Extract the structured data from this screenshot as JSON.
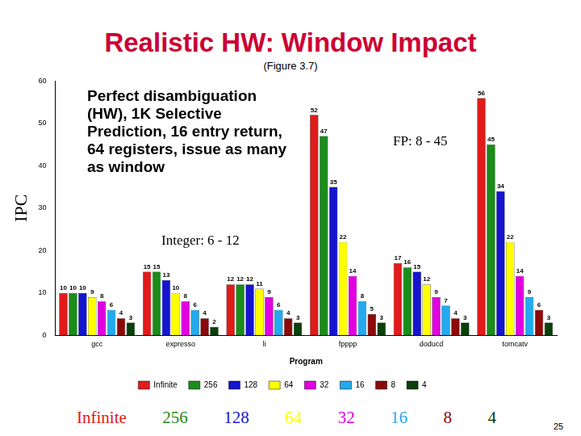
{
  "chart_data": {
    "type": "bar",
    "title": "Realistic HW: Window Impact",
    "subtitle": "(Figure 3.7)",
    "x_label": "Program",
    "y_label": "IPC",
    "annotations": [
      "Perfect disambiguation (HW), 1K Selective Prediction, 16 entry return, 64 registers, issue as many as window",
      "FP: 8 - 45",
      "Integer: 6 - 12",
      "25"
    ],
    "categories": [
      "gcc",
      "expresso",
      "li",
      "fpppp",
      "doducd",
      "tomcatv"
    ],
    "series": [
      {
        "name": "Infinite",
        "color": "#e01b1b",
        "values": [
          10,
          15,
          12,
          52,
          17,
          56
        ]
      },
      {
        "name": "256",
        "color": "#1a8c1a",
        "values": [
          10,
          15,
          12,
          47,
          16,
          45
        ]
      },
      {
        "name": "128",
        "color": "#1515d0",
        "values": [
          10,
          13,
          12,
          35,
          15,
          34
        ]
      },
      {
        "name": "64",
        "color": "#ffff00",
        "values": [
          9,
          10,
          11,
          22,
          12,
          22
        ]
      },
      {
        "name": "32",
        "color": "#e000e0",
        "values": [
          8,
          8,
          9,
          14,
          9,
          14
        ]
      },
      {
        "name": "16",
        "color": "#22aaee",
        "values": [
          6,
          6,
          6,
          8,
          7,
          9
        ]
      },
      {
        "name": "8",
        "color": "#8b0a0a",
        "values": [
          4,
          4,
          4,
          5,
          4,
          6
        ]
      },
      {
        "name": "4",
        "color": "#0a400a",
        "values": [
          3,
          2,
          3,
          3,
          3,
          3
        ]
      }
    ],
    "ylim": [
      0,
      60
    ],
    "yticks": [
      0,
      10,
      20,
      30,
      40,
      50,
      60
    ],
    "grid": false,
    "legend": "bottom",
    "data_labels": true
  }
}
